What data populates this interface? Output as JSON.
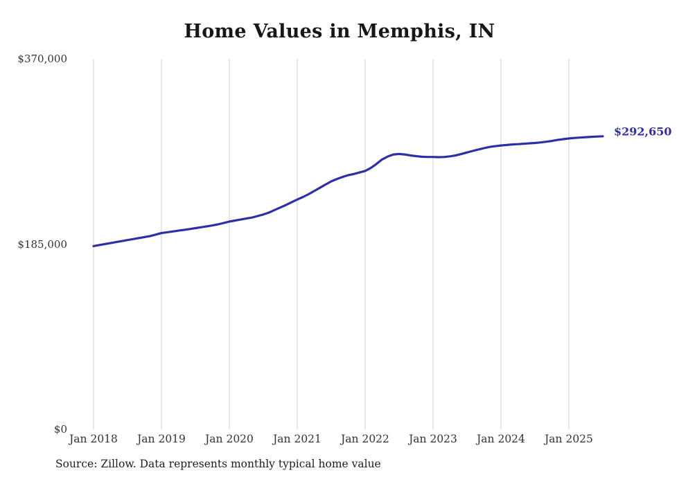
{
  "title": "Home Values in Memphis, IN",
  "source_note": "Source: Zillow. Data represents monthly typical home value",
  "end_label": "$292,650",
  "colors": {
    "line": "#2e2ea8",
    "grid": "#cccccc",
    "axis_text": "#333333",
    "title_text": "#17171b",
    "end_label_text": "#2e2ea8",
    "source_text": "#1c1c1c",
    "background": "#ffffff"
  },
  "chart_data": {
    "type": "line",
    "title": "Home Values in Memphis, IN",
    "x_start_month": "Jan 2018",
    "x_interval": "monthly",
    "x_tick_labels": [
      "Jan 2018",
      "Jan 2019",
      "Jan 2020",
      "Jan 2021",
      "Jan 2022",
      "Jan 2023",
      "Jan 2024",
      "Jan 2025"
    ],
    "y_ticks": [
      {
        "label": "$370,000",
        "value": 370000
      },
      {
        "label": "$185,000",
        "value": 185000
      },
      {
        "label": "$0",
        "value": 0
      }
    ],
    "ylim": [
      0,
      370000
    ],
    "grid": "vertical-only",
    "legend": "none",
    "series": [
      {
        "name": "Typical home value",
        "final_value": 292650,
        "final_value_label": "$292,650",
        "values": [
          183000,
          184000,
          185000,
          186000,
          187000,
          188000,
          189000,
          190000,
          191000,
          192000,
          193000,
          194500,
          196000,
          196800,
          197600,
          198400,
          199200,
          200000,
          200900,
          201800,
          202700,
          203600,
          204700,
          206000,
          207500,
          208500,
          209500,
          210500,
          211500,
          213000,
          214500,
          216500,
          219000,
          221500,
          224000,
          226800,
          229500,
          232000,
          234800,
          238000,
          241200,
          244500,
          247600,
          250000,
          252000,
          253800,
          255000,
          256500,
          258000,
          261000,
          265000,
          269500,
          272500,
          274500,
          275000,
          274500,
          273500,
          272800,
          272200,
          272000,
          272000,
          271800,
          272000,
          272600,
          273600,
          275000,
          276500,
          278000,
          279500,
          280800,
          282000,
          282800,
          283500,
          284000,
          284500,
          284800,
          285200,
          285600,
          286000,
          286500,
          287200,
          288000,
          289000,
          289800,
          290500,
          291000,
          291400,
          291800,
          292100,
          292400,
          292650
        ]
      }
    ]
  }
}
